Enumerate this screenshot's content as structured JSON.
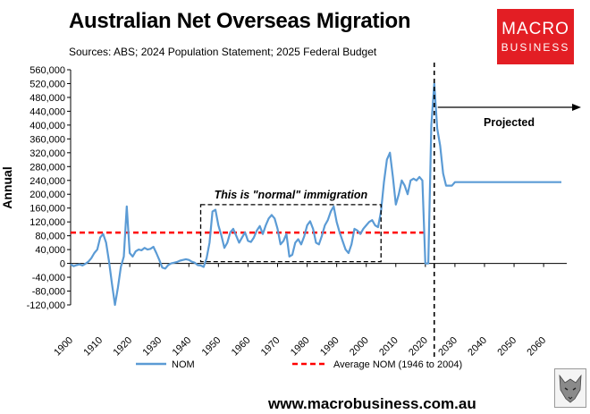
{
  "header": {
    "title": "Australian Net Overseas Migration",
    "subtitle": "Sources: ABS; 2024 Population Statement; 2025 Federal Budget"
  },
  "logo": {
    "line1": "MACRO",
    "line2": "BUSINESS"
  },
  "footer": {
    "website": "www.macrobusiness.com.au"
  },
  "colors": {
    "nom": "#5b9bd5",
    "average": "#ff0000",
    "logo_bg": "#e31e24"
  },
  "chart_data": {
    "type": "line",
    "title": "Australian Net Overseas Migration",
    "subtitle": "Sources: ABS; 2024 Population Statement; 2025 Federal Budget",
    "xlabel": "",
    "ylabel": "Annual",
    "xlim": [
      1900,
      2066
    ],
    "ylim": [
      -120000,
      560000
    ],
    "x_ticks": [
      1900,
      1910,
      1920,
      1930,
      1940,
      1950,
      1960,
      1970,
      1980,
      1990,
      2000,
      2010,
      2020,
      2030,
      2040,
      2050,
      2060
    ],
    "y_ticks": [
      -120000,
      -80000,
      -40000,
      0,
      40000,
      80000,
      120000,
      160000,
      200000,
      240000,
      280000,
      320000,
      360000,
      400000,
      440000,
      480000,
      520000,
      560000
    ],
    "y_tick_labels": [
      "-120,000",
      "-80,000",
      "-40,000",
      "0",
      "40,000",
      "80,000",
      "120,000",
      "160,000",
      "200,000",
      "240,000",
      "280,000",
      "320,000",
      "360,000",
      "400,000",
      "440,000",
      "480,000",
      "520,000",
      "560,000"
    ],
    "grid": false,
    "legend_position": "bottom",
    "series": [
      {
        "name": "NOM",
        "x": [
          1900,
          1901,
          1902,
          1903,
          1904,
          1905,
          1906,
          1907,
          1908,
          1909,
          1910,
          1911,
          1912,
          1913,
          1914,
          1915,
          1916,
          1917,
          1918,
          1919,
          1920,
          1921,
          1922,
          1923,
          1924,
          1925,
          1926,
          1927,
          1928,
          1929,
          1930,
          1931,
          1932,
          1933,
          1934,
          1935,
          1936,
          1937,
          1938,
          1939,
          1940,
          1941,
          1942,
          1943,
          1944,
          1945,
          1946,
          1947,
          1948,
          1949,
          1950,
          1951,
          1952,
          1953,
          1954,
          1955,
          1956,
          1957,
          1958,
          1959,
          1960,
          1961,
          1962,
          1963,
          1964,
          1965,
          1966,
          1967,
          1968,
          1969,
          1970,
          1971,
          1972,
          1973,
          1974,
          1975,
          1976,
          1977,
          1978,
          1979,
          1980,
          1981,
          1982,
          1983,
          1984,
          1985,
          1986,
          1987,
          1988,
          1989,
          1990,
          1991,
          1992,
          1993,
          1994,
          1995,
          1996,
          1997,
          1998,
          1999,
          2000,
          2001,
          2002,
          2003,
          2004,
          2005,
          2006,
          2007,
          2008,
          2009,
          2010,
          2011,
          2012,
          2013,
          2014,
          2015,
          2016,
          2017,
          2018,
          2019,
          2020,
          2021,
          2022,
          2023,
          2024,
          2025,
          2026,
          2027,
          2028,
          2029,
          2030,
          2066
        ],
        "values": [
          -2000,
          -8000,
          -5000,
          -3000,
          -6000,
          -1000,
          5000,
          15000,
          30000,
          40000,
          75000,
          85000,
          60000,
          5000,
          -60000,
          -120000,
          -70000,
          -10000,
          20000,
          165000,
          30000,
          20000,
          35000,
          40000,
          38000,
          45000,
          40000,
          42000,
          48000,
          30000,
          10000,
          -12000,
          -15000,
          -5000,
          0,
          2000,
          4000,
          8000,
          10000,
          12000,
          10000,
          5000,
          2000,
          -5000,
          -6000,
          -10000,
          15000,
          60000,
          150000,
          155000,
          110000,
          80000,
          45000,
          60000,
          90000,
          100000,
          80000,
          60000,
          75000,
          90000,
          65000,
          62000,
          75000,
          95000,
          108000,
          85000,
          110000,
          130000,
          140000,
          130000,
          100000,
          55000,
          65000,
          85000,
          20000,
          25000,
          60000,
          70000,
          55000,
          78000,
          110000,
          122000,
          100000,
          60000,
          55000,
          80000,
          110000,
          125000,
          150000,
          165000,
          120000,
          90000,
          65000,
          40000,
          30000,
          55000,
          100000,
          95000,
          85000,
          100000,
          110000,
          120000,
          125000,
          110000,
          105000,
          150000,
          235000,
          300000,
          320000,
          250000,
          170000,
          200000,
          240000,
          225000,
          200000,
          240000,
          245000,
          240000,
          250000,
          240000,
          0,
          0,
          400000,
          520000,
          390000,
          340000,
          260000,
          225000,
          225000,
          225000,
          235000,
          235000
        ]
      },
      {
        "name": "Average NOM (1946 to 2004)",
        "x": [
          1900,
          2020
        ],
        "values": [
          89000,
          89000
        ]
      }
    ],
    "annotations": [
      {
        "text": "This is \"normal\" immigration",
        "box_x": [
          1944,
          2005
        ],
        "box_y": [
          5000,
          170000
        ]
      },
      {
        "text": "Projected",
        "x": 2023
      }
    ],
    "markers": [
      {
        "type": "vertical-dashed-line",
        "x": 2023
      }
    ]
  }
}
